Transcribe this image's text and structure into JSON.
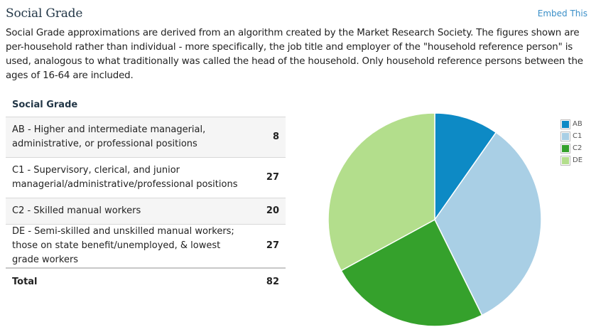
{
  "header": {
    "title": "Social Grade",
    "embed_label": "Embed This"
  },
  "description": "Social Grade approximations are derived from an algorithm created by the Market Research Society. The figures shown are per-household rather than individual - more specifically, the job title and employer of the \"household reference person\" is used, analogous to what traditionally was called the head of the household. Only household reference persons between the ages of 16-64 are included.",
  "table": {
    "header": "Social Grade",
    "rows": [
      {
        "label": "AB - Higher and intermediate managerial, administrative, or professional positions",
        "value": "8"
      },
      {
        "label": "C1 - Supervisory, clerical, and junior managerial/administrative/professional positions",
        "value": "27"
      },
      {
        "label": "C2 - Skilled manual workers",
        "value": "20"
      },
      {
        "label": "DE - Semi-skilled and unskilled manual workers; those on state benefit/unemployed, & lowest grade workers",
        "value": "27"
      }
    ],
    "total_label": "Total",
    "total_value": "82"
  },
  "chart_data": {
    "type": "pie",
    "categories": [
      "AB",
      "C1",
      "C2",
      "DE"
    ],
    "values": [
      8,
      27,
      20,
      27
    ],
    "colors": [
      "#0d8ac5",
      "#a9cfe5",
      "#35a12c",
      "#b3de8c"
    ],
    "legend_position": "right",
    "start_angle": "top, clockwise"
  }
}
